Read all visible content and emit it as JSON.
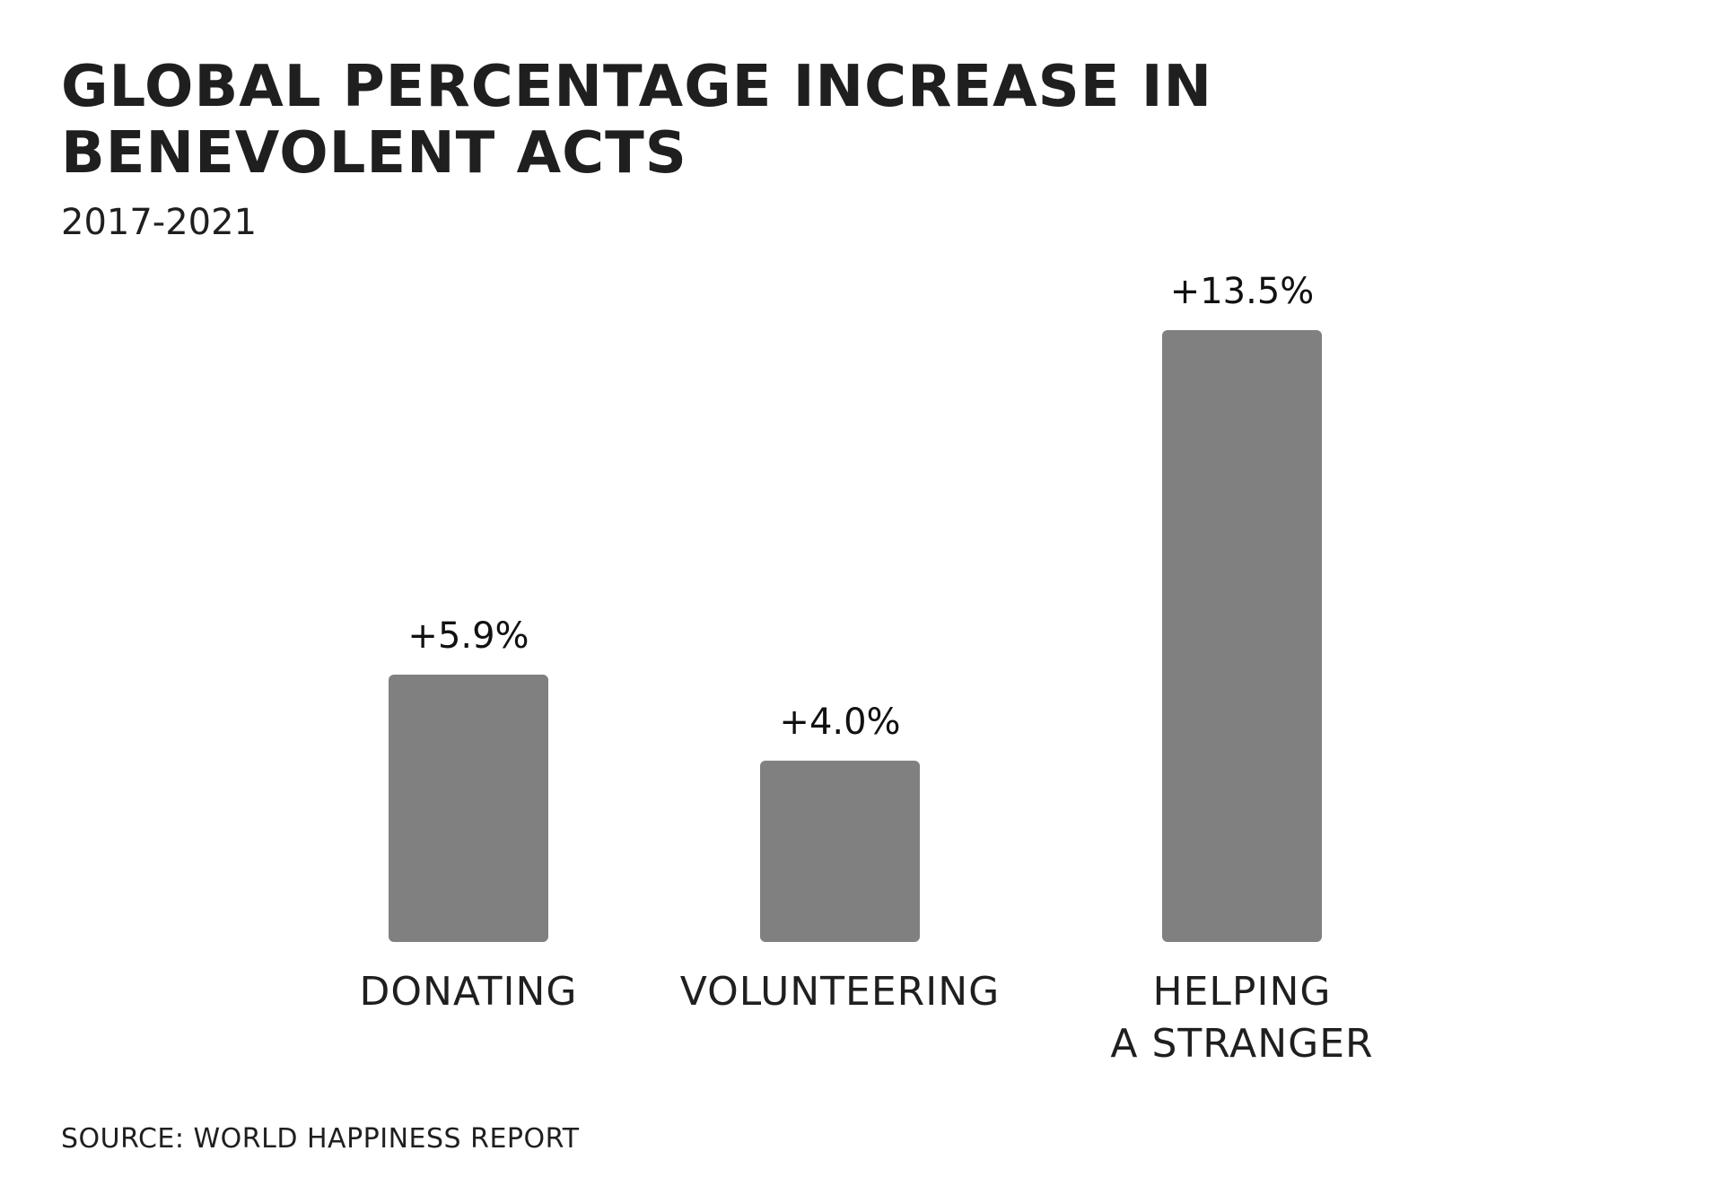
{
  "chart_data": {
    "type": "bar",
    "title": "GLOBAL PERCENTAGE INCREASE IN BENEVOLENT ACTS",
    "subtitle": "2017-2021",
    "categories": [
      [
        "DONATING"
      ],
      [
        "VOLUNTEERING"
      ],
      [
        "HELPING",
        "A STRANGER"
      ]
    ],
    "values": [
      5.9,
      4.0,
      13.5
    ],
    "data_labels": [
      "+5.9%",
      "+4.0%",
      "+13.5%"
    ],
    "xlabel": "",
    "ylabel": "",
    "ylim": [
      0,
      13.5
    ],
    "grid": false,
    "legend": "none",
    "bar_color": "#808080",
    "source": "SOURCE: WORLD HAPPINESS REPORT"
  }
}
